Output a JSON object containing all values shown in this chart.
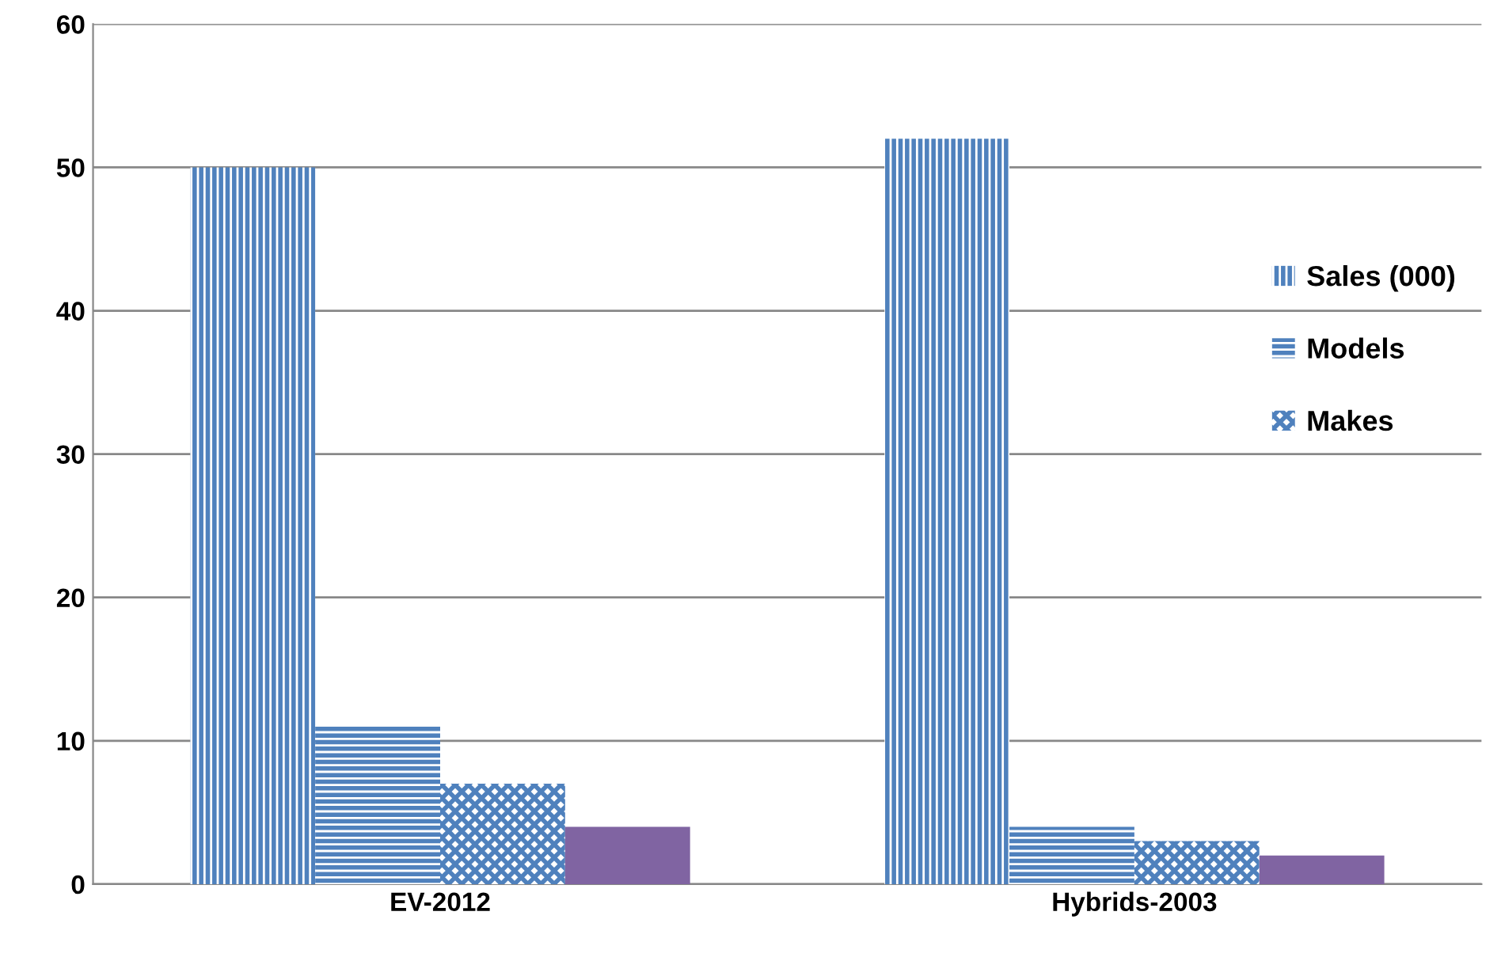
{
  "chart_data": {
    "type": "bar",
    "categories": [
      "EV-2012",
      "Hybrids-2003"
    ],
    "series": [
      {
        "name": "Sales (000)",
        "color": "#4f81bd",
        "values": [
          50,
          52
        ]
      },
      {
        "name": "Models",
        "color": "#4f81bd",
        "values": [
          11,
          4
        ]
      },
      {
        "name": "Makes",
        "color": "#4f81bd",
        "values": [
          7,
          3
        ]
      },
      {
        "color": "#8064a2",
        "values": [
          4,
          2
        ]
      }
    ],
    "ylim": [
      0,
      60
    ],
    "yticks": [
      0,
      10,
      20,
      30,
      40,
      50,
      60
    ],
    "grid": "y",
    "legend": "right"
  }
}
